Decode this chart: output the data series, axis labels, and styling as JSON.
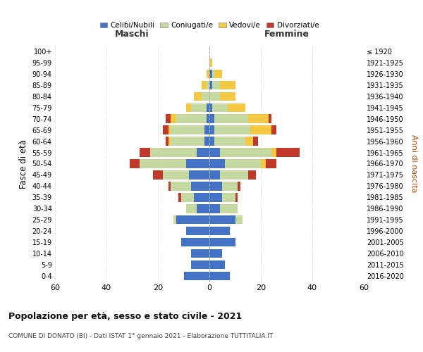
{
  "age_groups": [
    "0-4",
    "5-9",
    "10-14",
    "15-19",
    "20-24",
    "25-29",
    "30-34",
    "35-39",
    "40-44",
    "45-49",
    "50-54",
    "55-59",
    "60-64",
    "65-69",
    "70-74",
    "75-79",
    "80-84",
    "85-89",
    "90-94",
    "95-99",
    "100+"
  ],
  "birth_years": [
    "2016-2020",
    "2011-2015",
    "2006-2010",
    "2001-2005",
    "1996-2000",
    "1991-1995",
    "1986-1990",
    "1981-1985",
    "1976-1980",
    "1971-1975",
    "1966-1970",
    "1961-1965",
    "1956-1960",
    "1951-1955",
    "1946-1950",
    "1941-1945",
    "1936-1940",
    "1931-1935",
    "1926-1930",
    "1921-1925",
    "≤ 1920"
  ],
  "colors": {
    "celibi": "#4472c4",
    "coniugati": "#c5d9a0",
    "vedovi": "#f5c842",
    "divorziati": "#c0392b"
  },
  "males": {
    "celibi": [
      10,
      7,
      7,
      11,
      9,
      13,
      5,
      6,
      7,
      8,
      9,
      5,
      2,
      2,
      1,
      1,
      0,
      0,
      0,
      0,
      0
    ],
    "coniugati": [
      0,
      0,
      0,
      0,
      0,
      1,
      4,
      5,
      8,
      10,
      18,
      18,
      13,
      13,
      12,
      6,
      3,
      1,
      0,
      0,
      0
    ],
    "vedovi": [
      0,
      0,
      0,
      0,
      0,
      0,
      0,
      0,
      0,
      0,
      0,
      0,
      1,
      1,
      2,
      2,
      3,
      2,
      1,
      0,
      0
    ],
    "divorziati": [
      0,
      0,
      0,
      0,
      0,
      0,
      0,
      1,
      1,
      4,
      4,
      4,
      1,
      2,
      2,
      0,
      0,
      0,
      0,
      0,
      0
    ]
  },
  "females": {
    "celibi": [
      8,
      6,
      5,
      10,
      8,
      10,
      4,
      5,
      5,
      4,
      6,
      4,
      2,
      2,
      2,
      1,
      0,
      1,
      1,
      0,
      0
    ],
    "coniugati": [
      0,
      0,
      0,
      0,
      0,
      3,
      7,
      5,
      6,
      11,
      14,
      20,
      12,
      14,
      13,
      6,
      4,
      3,
      1,
      0,
      0
    ],
    "vedovi": [
      0,
      0,
      0,
      0,
      0,
      0,
      0,
      0,
      0,
      0,
      2,
      2,
      3,
      8,
      8,
      7,
      6,
      6,
      3,
      1,
      0
    ],
    "divorziati": [
      0,
      0,
      0,
      0,
      0,
      0,
      0,
      1,
      1,
      3,
      4,
      9,
      2,
      2,
      1,
      0,
      0,
      0,
      0,
      0,
      0
    ]
  },
  "xlim": [
    -60,
    60
  ],
  "xticks": [
    -60,
    -40,
    -20,
    0,
    20,
    40,
    60
  ],
  "xticklabels": [
    "60",
    "40",
    "20",
    "0",
    "20",
    "40",
    "60"
  ],
  "title": "Popolazione per età, sesso e stato civile - 2021",
  "subtitle": "COMUNE DI DONATO (BI) - Dati ISTAT 1° gennaio 2021 - Elaborazione TUTTITALIA.IT",
  "ylabel_left": "Fasce di età",
  "ylabel_right": "Anni di nascita",
  "label_maschi": "Maschi",
  "label_femmine": "Femmine",
  "legend_labels": [
    "Celibi/Nubili",
    "Coniugati/e",
    "Vedovi/e",
    "Divorziati/e"
  ],
  "bg_color": "#ffffff"
}
